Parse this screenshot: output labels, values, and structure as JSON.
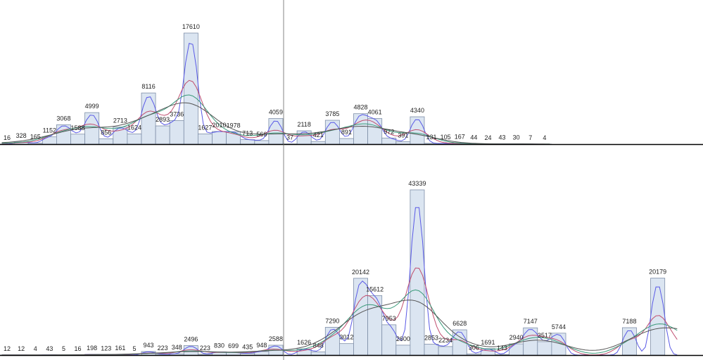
{
  "chart_data": [
    {
      "type": "bar",
      "panel": "top",
      "values": [
        16,
        328,
        165,
        1152,
        3068,
        1588,
        4999,
        856,
        2713,
        1624,
        8116,
        2893,
        3736,
        17610,
        1627,
        2010,
        1978,
        713,
        566,
        4059,
        37,
        2118,
        421,
        3785,
        891,
        4828,
        4061,
        972,
        391,
        4340,
        131,
        105,
        167,
        44,
        24,
        43,
        30,
        7,
        4
      ],
      "labels": [
        "16",
        "328",
        "165",
        "1152",
        "3068",
        "1588",
        "4999",
        "856",
        "2713",
        "1624",
        "8116",
        "2893",
        "3736",
        "17610",
        "1627",
        "2010",
        "1978",
        "713",
        "566",
        "4059",
        "37",
        "2118",
        "421",
        "3785",
        "891",
        "4828",
        "4061",
        "972",
        "391",
        "4340",
        "131",
        "105",
        "167",
        "44",
        "24",
        "43",
        "30",
        "7",
        "4"
      ],
      "ylim": [
        0,
        17610
      ],
      "grid": false,
      "smoothing_lines": 4
    },
    {
      "type": "bar",
      "panel": "bottom",
      "values": [
        12,
        12,
        4,
        43,
        5,
        16,
        198,
        123,
        161,
        5,
        943,
        223,
        348,
        2496,
        223,
        830,
        699,
        435,
        948,
        2588,
        0,
        1626,
        848,
        7290,
        3012,
        20142,
        15612,
        7953,
        2600,
        43339,
        2853,
        2234,
        6628,
        306,
        1691,
        143,
        2940,
        7147,
        3517,
        5744,
        0,
        0,
        0,
        0,
        7188,
        0,
        20179,
        0
      ],
      "labels": [
        "12",
        "12",
        "4",
        "43",
        "5",
        "16",
        "198",
        "123",
        "161",
        "5",
        "943",
        "223",
        "348",
        "2496",
        "223",
        "830",
        "699",
        "435",
        "948",
        "2588",
        "",
        "1626",
        "848",
        "7290",
        "3012",
        "20142",
        "15612",
        "7953",
        "2600",
        "43339",
        "2853",
        "2234",
        "6628",
        "306",
        "1691",
        "143",
        "2940",
        "7147",
        "3517",
        "5744",
        "",
        "",
        "",
        "",
        "7188",
        "",
        "20179",
        ""
      ],
      "ylim": [
        0,
        43339
      ],
      "grid": false,
      "smoothing_lines": 4
    }
  ],
  "colors": {
    "bar_fill": "#dbe5f1",
    "bar_stroke": "#7f8fa8",
    "axis": "#000000",
    "divider": "#666666",
    "series": [
      "#5a5ae6",
      "#c05070",
      "#3a9a7a",
      "#555555"
    ]
  }
}
